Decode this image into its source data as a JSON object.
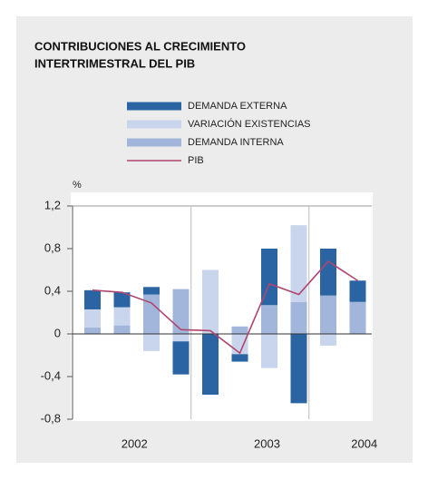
{
  "chart_data": {
    "type": "stacked_bar_line",
    "title": [
      "CONTRIBUCIONES AL CRECIMIENTO",
      "INTERTRIMESTRAL DEL PIB"
    ],
    "y_unit": "%",
    "categories": [
      null,
      null,
      null,
      null,
      null,
      null,
      null,
      null,
      null,
      null
    ],
    "year_labels": [
      "2002",
      "2003",
      "2004"
    ],
    "ylim": [
      -0.8,
      1.2
    ],
    "yticks": [
      {
        "value": 1.2,
        "label": "1,2"
      },
      {
        "value": 0.8,
        "label": "0,8"
      },
      {
        "value": 0.4,
        "label": "0,4"
      },
      0,
      {
        "value": -0.4,
        "label": "-0,4"
      },
      {
        "value": -0.8,
        "label": "-0,8"
      }
    ],
    "series": [
      {
        "name": "DEMANDA EXTERNA",
        "color": "#2b64a3",
        "kind": "bar",
        "values": [
          0.18,
          0.14,
          0.07,
          -0.31,
          -0.57,
          -0.07,
          0.53,
          -0.65,
          0.44,
          0.2
        ]
      },
      {
        "name": "VARIACIÓN EXISTENCIAS",
        "color": "#c8d5ec",
        "kind": "bar",
        "values": [
          0.17,
          0.17,
          -0.16,
          -0.07,
          0.6,
          -0.19,
          -0.32,
          0.72,
          -0.11,
          0
        ]
      },
      {
        "name": "DEMANDA INTERNA",
        "color": "#a2b6dc",
        "kind": "bar",
        "values": [
          0.06,
          0.08,
          0.37,
          0.42,
          0,
          0.07,
          0.27,
          0.3,
          0.36,
          0.3
        ]
      },
      {
        "name": "PIB",
        "color": "#b0456e",
        "kind": "line",
        "values": [
          0.41,
          0.39,
          0.29,
          0.04,
          0.03,
          -0.18,
          0.47,
          0.37,
          0.68,
          0.5
        ]
      }
    ],
    "stack_order": [
      2,
      1,
      0
    ]
  }
}
